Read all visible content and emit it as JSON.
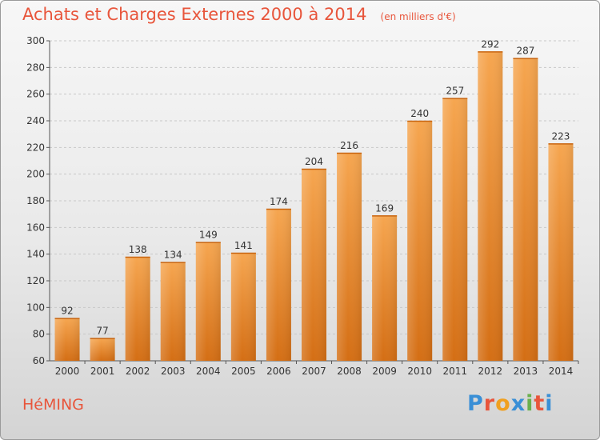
{
  "header": {
    "title": "Achats et Charges Externes 2000 à 2014",
    "unit": "(en milliers d'€)"
  },
  "footer": {
    "town": "HéMING",
    "brand": "Proxiti",
    "brand_colors": [
      "#3a8fd6",
      "#e8553b",
      "#f0a020",
      "#3a8fd6",
      "#6ab04c",
      "#e8553b",
      "#3a8fd6"
    ]
  },
  "chart_data": {
    "type": "bar",
    "title": "Achats et Charges Externes 2000 à 2014",
    "subtitle": "(en milliers d'€)",
    "categories": [
      "2000",
      "2001",
      "2002",
      "2003",
      "2004",
      "2005",
      "2006",
      "2007",
      "2008",
      "2009",
      "2010",
      "2011",
      "2012",
      "2013",
      "2014"
    ],
    "values": [
      92,
      77,
      138,
      134,
      149,
      141,
      174,
      204,
      216,
      169,
      240,
      257,
      292,
      287,
      223
    ],
    "ylim": [
      60,
      300
    ],
    "yticks": [
      60,
      80,
      100,
      120,
      140,
      160,
      180,
      200,
      220,
      240,
      260,
      280,
      300
    ],
    "xlabel": "",
    "ylabel": "",
    "grid": true,
    "bar_color": "#f0a04b",
    "bar_color_dark": "#d97418",
    "data_labels": true
  }
}
